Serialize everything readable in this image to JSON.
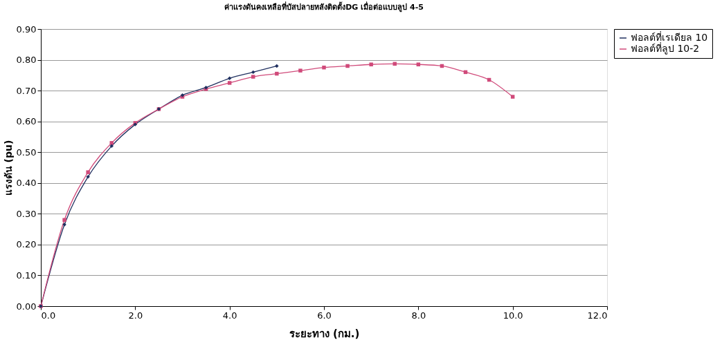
{
  "chart_data": {
    "type": "line",
    "title": "ค่าแรงดันคงเหลือที่บัสปลายหลังติดตั้งDG เมื่อต่อแบบลูป 4-5",
    "xlabel": "ระยะทาง (กม.)",
    "ylabel": "แรงดัน (pu)",
    "x": [
      0,
      0.5,
      1,
      1.5,
      2,
      2.5,
      3,
      3.5,
      4,
      4.5,
      5,
      5.5,
      6,
      6.5,
      7,
      7.5,
      8,
      8.5,
      9,
      9.5,
      10
    ],
    "series": [
      {
        "name": "ฟอลต์ที่เรเดียล 10",
        "color": "#1f2f5f",
        "marker": "diamond",
        "values": [
          0,
          0.265,
          0.42,
          0.52,
          0.59,
          0.64,
          0.685,
          0.71,
          0.74,
          0.76,
          0.78,
          null,
          null,
          null,
          null,
          null,
          null,
          null,
          null,
          null,
          null
        ]
      },
      {
        "name": "ฟอลต์ที่ลูป 10-2",
        "color": "#d04a7a",
        "marker": "square",
        "values": [
          0,
          0.28,
          0.435,
          0.53,
          0.595,
          0.64,
          0.68,
          0.705,
          0.725,
          0.745,
          0.755,
          0.765,
          0.775,
          0.78,
          0.785,
          0.787,
          0.785,
          0.78,
          0.76,
          0.735,
          0.68
        ]
      }
    ],
    "xlim": [
      0,
      12
    ],
    "xticks": [
      {
        "value": 0,
        "label": "0.0"
      },
      {
        "value": 2,
        "label": "2.0"
      },
      {
        "value": 4,
        "label": "4.0"
      },
      {
        "value": 6,
        "label": "6.0"
      },
      {
        "value": 8,
        "label": "8.0"
      },
      {
        "value": 10,
        "label": "10.0"
      },
      {
        "value": 12,
        "label": "12.0"
      }
    ],
    "ylim": [
      0,
      0.9
    ],
    "yticks": [
      {
        "value": 0,
        "label": "0.00"
      },
      {
        "value": 0.1,
        "label": "0.10"
      },
      {
        "value": 0.2,
        "label": "0.20"
      },
      {
        "value": 0.3,
        "label": "0.30"
      },
      {
        "value": 0.4,
        "label": "0.40"
      },
      {
        "value": 0.5,
        "label": "0.50"
      },
      {
        "value": 0.6,
        "label": "0.60"
      },
      {
        "value": 0.7,
        "label": "0.70"
      },
      {
        "value": 0.8,
        "label": "0.80"
      },
      {
        "value": 0.9,
        "label": "0.90"
      }
    ],
    "grid": "y",
    "legend": "top right",
    "line_style": "solid"
  }
}
